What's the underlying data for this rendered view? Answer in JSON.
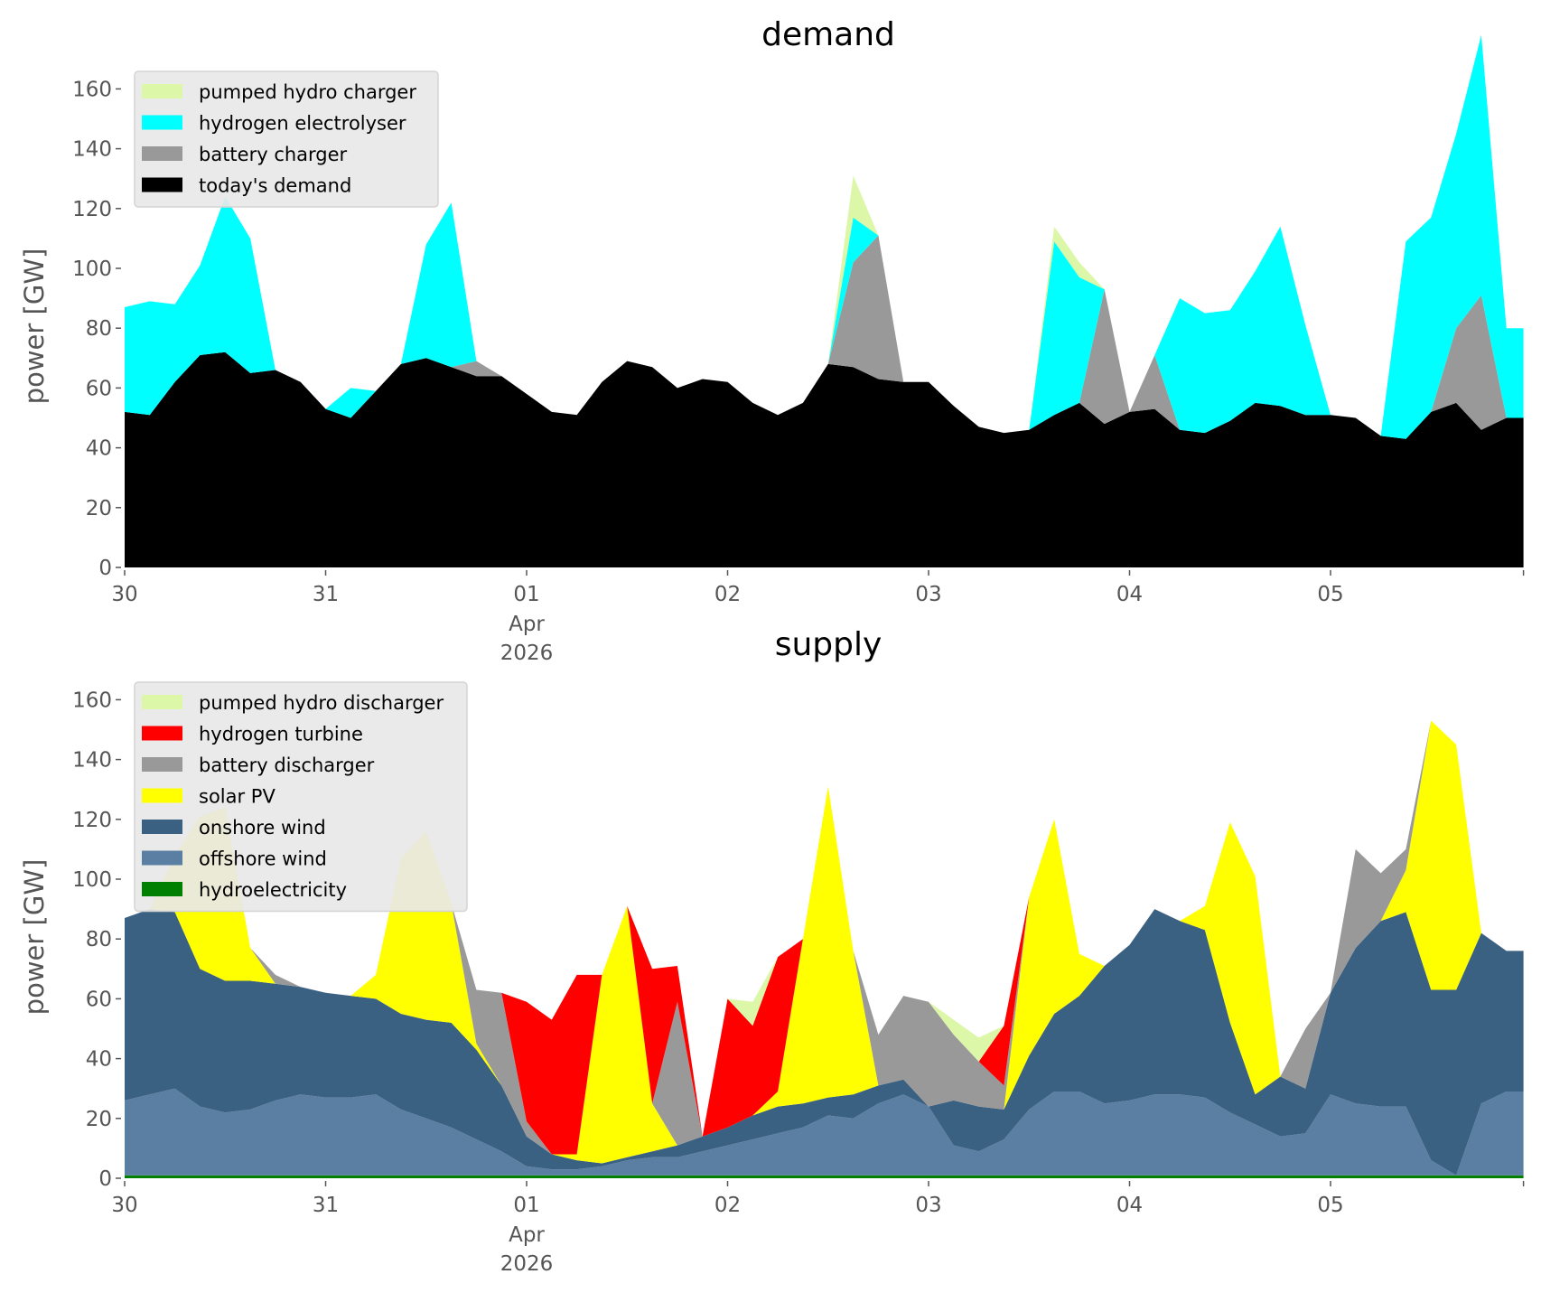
{
  "chart_data": [
    {
      "type": "area",
      "stacked": true,
      "title": "demand",
      "xlabel": "",
      "ylabel": "power [GW]",
      "ylim": [
        0,
        165
      ],
      "yticks": [
        0,
        20,
        40,
        60,
        80,
        100,
        120,
        140,
        160
      ],
      "xticks": [
        {
          "day": 0,
          "label": "30"
        },
        {
          "day": 1,
          "label": "31"
        },
        {
          "day": 2,
          "label": "01",
          "sub": [
            "Apr",
            "2026"
          ]
        },
        {
          "day": 3,
          "label": "02"
        },
        {
          "day": 4,
          "label": "03"
        },
        {
          "day": 5,
          "label": "04"
        },
        {
          "day": 6,
          "label": "05"
        }
      ],
      "xrange_days": [
        0,
        6.96
      ],
      "x_step_hours": 3,
      "grid": false,
      "legend_position": "top-left",
      "series": [
        {
          "name": "today's demand",
          "color": "#000000",
          "values": [
            52,
            51,
            62,
            71,
            72,
            65,
            66,
            62,
            53,
            50,
            59,
            68,
            70,
            67,
            64,
            64,
            58,
            52,
            51,
            62,
            69,
            67,
            60,
            63,
            62,
            55,
            51,
            55,
            68,
            67,
            63,
            62,
            62,
            54,
            47,
            45,
            46,
            51,
            55,
            48,
            52,
            53,
            46,
            45,
            49,
            55,
            54,
            51,
            51,
            50,
            44,
            43,
            52,
            55,
            46,
            50
          ]
        },
        {
          "name": "battery charger",
          "color": "#999999",
          "values": [
            0,
            0,
            0,
            0,
            0,
            0,
            0,
            0,
            0,
            0,
            0,
            0,
            0,
            0,
            5,
            0,
            0,
            0,
            0,
            0,
            0,
            0,
            0,
            0,
            0,
            0,
            0,
            0,
            0,
            35,
            48,
            0,
            0,
            0,
            0,
            0,
            0,
            0,
            0,
            45,
            0,
            18,
            0,
            0,
            0,
            0,
            0,
            0,
            0,
            0,
            0,
            0,
            0,
            25,
            45,
            0
          ]
        },
        {
          "name": "hydrogen electrolyser",
          "color": "#00ffff",
          "values": [
            35,
            38,
            26,
            30,
            52,
            45,
            0,
            0,
            0,
            10,
            0,
            0,
            38,
            55,
            0,
            0,
            0,
            0,
            0,
            0,
            0,
            0,
            0,
            0,
            0,
            0,
            0,
            0,
            0,
            15,
            0,
            0,
            0,
            0,
            0,
            0,
            0,
            58,
            42,
            0,
            0,
            0,
            44,
            40,
            37,
            44,
            60,
            30,
            0,
            0,
            0,
            66,
            65,
            65,
            87,
            30
          ]
        },
        {
          "name": "pumped hydro charger",
          "color": "#dcf7a8",
          "values": [
            0,
            0,
            0,
            0,
            0,
            0,
            0,
            0,
            0,
            0,
            0,
            0,
            0,
            0,
            0,
            0,
            0,
            0,
            0,
            0,
            0,
            0,
            0,
            0,
            0,
            0,
            0,
            0,
            0,
            14,
            0,
            0,
            0,
            0,
            0,
            0,
            0,
            5,
            5,
            0,
            0,
            0,
            0,
            0,
            0,
            0,
            0,
            0,
            0,
            0,
            0,
            0,
            0,
            0,
            0,
            0
          ]
        }
      ]
    },
    {
      "type": "area",
      "stacked": true,
      "title": "supply",
      "xlabel": "",
      "ylabel": "power [GW]",
      "ylim": [
        0,
        165
      ],
      "yticks": [
        0,
        20,
        40,
        60,
        80,
        100,
        120,
        140,
        160
      ],
      "xticks": [
        {
          "day": 0,
          "label": "30"
        },
        {
          "day": 1,
          "label": "31"
        },
        {
          "day": 2,
          "label": "01",
          "sub": [
            "Apr",
            "2026"
          ]
        },
        {
          "day": 3,
          "label": "02"
        },
        {
          "day": 4,
          "label": "03"
        },
        {
          "day": 5,
          "label": "04"
        },
        {
          "day": 6,
          "label": "05"
        }
      ],
      "xrange_days": [
        0,
        6.96
      ],
      "x_step_hours": 3,
      "grid": false,
      "legend_position": "top-left",
      "series": [
        {
          "name": "hydroelectricity",
          "color": "#008000",
          "values": [
            1,
            1,
            1,
            1,
            1,
            1,
            1,
            1,
            1,
            1,
            1,
            1,
            1,
            1,
            1,
            1,
            1,
            1,
            1,
            1,
            1,
            1,
            1,
            1,
            1,
            1,
            1,
            1,
            1,
            1,
            1,
            1,
            1,
            1,
            1,
            1,
            1,
            1,
            1,
            1,
            1,
            1,
            1,
            1,
            1,
            1,
            1,
            1,
            1,
            1,
            1,
            1,
            1,
            1,
            1,
            1
          ]
        },
        {
          "name": "offshore wind",
          "color": "#5b7fa3",
          "values": [
            25,
            27,
            29,
            23,
            21,
            22,
            25,
            27,
            26,
            26,
            27,
            22,
            19,
            16,
            12,
            8,
            3,
            2,
            2,
            3,
            5,
            6,
            6,
            8,
            10,
            12,
            14,
            16,
            20,
            19,
            24,
            27,
            23,
            10,
            8,
            12,
            22,
            28,
            28,
            24,
            25,
            27,
            27,
            26,
            21,
            17,
            13,
            14,
            27,
            24,
            23,
            23,
            5,
            0,
            24,
            28
          ]
        },
        {
          "name": "onshore wind",
          "color": "#3b6182",
          "values": [
            61,
            62,
            59,
            46,
            44,
            43,
            39,
            36,
            35,
            34,
            32,
            32,
            33,
            35,
            30,
            22,
            10,
            5,
            3,
            1,
            1,
            2,
            4,
            5,
            6,
            8,
            9,
            8,
            6,
            8,
            6,
            5,
            0,
            15,
            15,
            10,
            18,
            26,
            32,
            46,
            52,
            62,
            58,
            56,
            30,
            10,
            20,
            15,
            34,
            52,
            62,
            65,
            57,
            62,
            57,
            47
          ]
        },
        {
          "name": "solar PV",
          "color": "#ffff00",
          "values": [
            0,
            0,
            19,
            51,
            58,
            11,
            0,
            0,
            0,
            0,
            8,
            52,
            63,
            40,
            2,
            0,
            0,
            0,
            2,
            63,
            84,
            16,
            0,
            0,
            0,
            0,
            5,
            55,
            104,
            48,
            0,
            0,
            0,
            0,
            0,
            0,
            53,
            65,
            14,
            0,
            0,
            0,
            0,
            8,
            67,
            73,
            0,
            0,
            0,
            0,
            0,
            14,
            90,
            82,
            0,
            0
          ]
        },
        {
          "name": "battery discharger",
          "color": "#999999",
          "values": [
            0,
            0,
            0,
            0,
            0,
            0,
            3,
            0,
            0,
            0,
            0,
            0,
            0,
            0,
            18,
            31,
            5,
            0,
            0,
            0,
            0,
            0,
            48,
            0,
            0,
            0,
            0,
            0,
            0,
            0,
            17,
            28,
            35,
            22,
            15,
            8,
            0,
            0,
            0,
            0,
            0,
            0,
            0,
            0,
            0,
            0,
            0,
            20,
            0,
            33,
            16,
            7,
            0,
            0,
            0,
            0
          ]
        },
        {
          "name": "hydrogen turbine",
          "color": "#ff0000",
          "values": [
            0,
            0,
            0,
            0,
            0,
            0,
            0,
            0,
            0,
            0,
            0,
            0,
            0,
            0,
            0,
            0,
            40,
            45,
            60,
            0,
            0,
            45,
            12,
            0,
            43,
            30,
            45,
            0,
            0,
            0,
            0,
            0,
            0,
            0,
            0,
            20,
            0,
            0,
            0,
            0,
            0,
            0,
            0,
            0,
            0,
            0,
            0,
            0,
            0,
            0,
            0,
            0,
            0,
            0,
            0,
            0
          ]
        },
        {
          "name": "pumped hydro discharger",
          "color": "#dcf7a8",
          "values": [
            0,
            0,
            0,
            0,
            0,
            0,
            0,
            0,
            0,
            0,
            0,
            0,
            0,
            0,
            0,
            0,
            0,
            0,
            0,
            0,
            0,
            0,
            0,
            0,
            0,
            8,
            0,
            0,
            0,
            0,
            0,
            0,
            0,
            5,
            8,
            0,
            0,
            0,
            0,
            0,
            0,
            0,
            0,
            0,
            0,
            0,
            0,
            0,
            0,
            0,
            0,
            0,
            0,
            0,
            0,
            0
          ]
        }
      ]
    }
  ]
}
